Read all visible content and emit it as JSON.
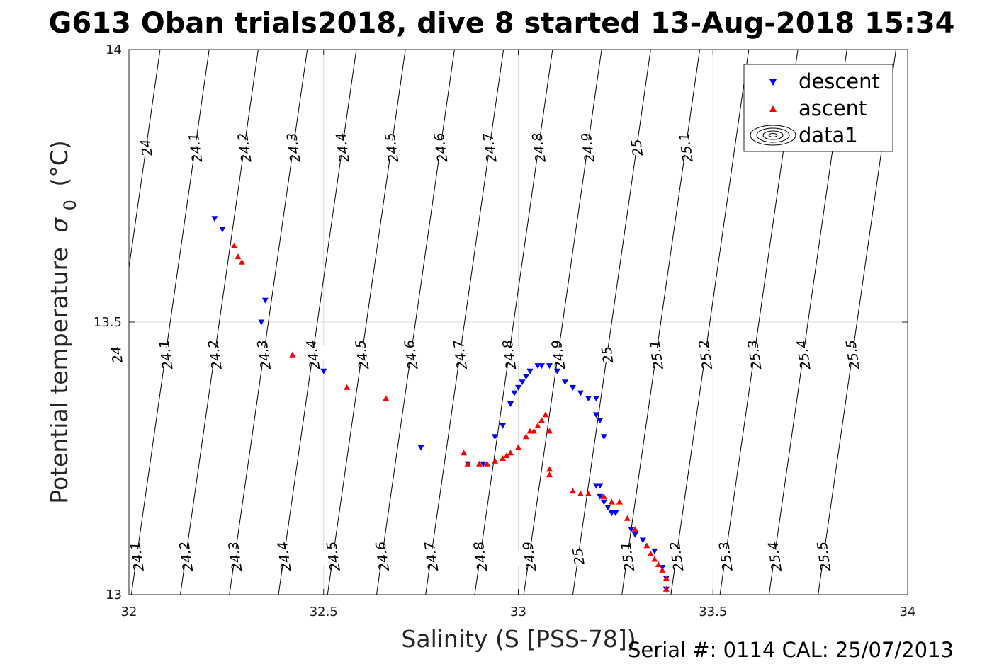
{
  "chart_data": {
    "type": "scatter",
    "title": "G613 Oban trials2018, dive 8 started 13-Aug-2018 15:34",
    "xlabel": "Salinity (S [PSS-78])",
    "ylabel": "Potential temperature",
    "ylabel_symbol": "σ",
    "ylabel_subscript": "0",
    "ylabel_unit": "(°C)",
    "xlim": [
      32,
      34
    ],
    "ylim": [
      13,
      14
    ],
    "xticks": [
      "32",
      "32.5",
      "33",
      "33.5",
      "34"
    ],
    "yticks": [
      "13",
      "13.5",
      "14"
    ],
    "grid": true,
    "legend_position": "top-right",
    "contour_levels": [
      24.0,
      24.1,
      24.2,
      24.3,
      24.4,
      24.5,
      24.6,
      24.7,
      24.8,
      24.9,
      25.0,
      25.1,
      25.2,
      25.3,
      25.4,
      25.5
    ],
    "contour_labels": {
      "top": [
        "24",
        "24.1",
        "24.2",
        "24.3",
        "24.4",
        "24.5",
        "24.6",
        "24.7",
        "24.8",
        "24.9",
        "25",
        "25.1"
      ],
      "middle": [
        "24",
        "24.1",
        "24.2",
        "24.3",
        "24.4",
        "24.5",
        "24.6",
        "24.7",
        "24.8",
        "24.9",
        "25",
        "25.1",
        "25.2",
        "25.3",
        "25.4",
        "25.5"
      ],
      "bottom": [
        "24.1",
        "24.2",
        "24.3",
        "24.4",
        "24.5",
        "24.6",
        "24.7",
        "24.8",
        "24.9",
        "25",
        "25.1",
        "25.2",
        "25.3",
        "25.4",
        "25.5"
      ]
    },
    "series": [
      {
        "name": "descent",
        "marker": "triangle-down",
        "color": "#0000ff",
        "points": [
          [
            32.22,
            13.69
          ],
          [
            32.24,
            13.67
          ],
          [
            32.35,
            13.54
          ],
          [
            32.34,
            13.5
          ],
          [
            32.5,
            13.41
          ],
          [
            32.75,
            13.27
          ],
          [
            32.87,
            13.24
          ],
          [
            32.91,
            13.24
          ],
          [
            32.94,
            13.29
          ],
          [
            32.96,
            13.31
          ],
          [
            32.98,
            13.35
          ],
          [
            32.99,
            13.37
          ],
          [
            33.0,
            13.38
          ],
          [
            33.01,
            13.39
          ],
          [
            33.02,
            13.4
          ],
          [
            33.03,
            13.41
          ],
          [
            33.05,
            13.42
          ],
          [
            33.06,
            13.42
          ],
          [
            33.08,
            13.42
          ],
          [
            33.1,
            13.41
          ],
          [
            33.12,
            13.39
          ],
          [
            33.14,
            13.38
          ],
          [
            33.16,
            13.37
          ],
          [
            33.18,
            13.36
          ],
          [
            33.2,
            13.36
          ],
          [
            33.2,
            13.33
          ],
          [
            33.21,
            13.32
          ],
          [
            33.22,
            13.29
          ],
          [
            33.2,
            13.2
          ],
          [
            33.21,
            13.2
          ],
          [
            33.21,
            13.18
          ],
          [
            33.22,
            13.17
          ],
          [
            33.23,
            13.16
          ],
          [
            33.24,
            13.15
          ],
          [
            33.25,
            13.15
          ],
          [
            33.29,
            13.12
          ],
          [
            33.3,
            13.11
          ],
          [
            33.32,
            13.1
          ],
          [
            33.35,
            13.08
          ],
          [
            33.37,
            13.05
          ],
          [
            33.38,
            13.03
          ],
          [
            33.38,
            13.01
          ]
        ]
      },
      {
        "name": "ascent",
        "marker": "triangle-up",
        "color": "#ff0000",
        "points": [
          [
            32.27,
            13.64
          ],
          [
            32.28,
            13.62
          ],
          [
            32.29,
            13.61
          ],
          [
            32.42,
            13.44
          ],
          [
            32.56,
            13.38
          ],
          [
            32.66,
            13.36
          ],
          [
            32.86,
            13.26
          ],
          [
            32.87,
            13.24
          ],
          [
            32.9,
            13.24
          ],
          [
            32.92,
            13.24
          ],
          [
            32.94,
            13.245
          ],
          [
            32.96,
            13.25
          ],
          [
            32.97,
            13.255
          ],
          [
            32.98,
            13.26
          ],
          [
            33.0,
            13.27
          ],
          [
            33.02,
            13.29
          ],
          [
            33.03,
            13.3
          ],
          [
            33.04,
            13.3
          ],
          [
            33.05,
            13.31
          ],
          [
            33.06,
            13.32
          ],
          [
            33.07,
            13.33
          ],
          [
            33.08,
            13.3
          ],
          [
            33.08,
            13.23
          ],
          [
            33.08,
            13.22
          ],
          [
            33.14,
            13.19
          ],
          [
            33.16,
            13.185
          ],
          [
            33.18,
            13.185
          ],
          [
            33.22,
            13.18
          ],
          [
            33.24,
            13.17
          ],
          [
            33.26,
            13.17
          ],
          [
            33.28,
            13.14
          ],
          [
            33.3,
            13.12
          ],
          [
            33.33,
            13.09
          ],
          [
            33.34,
            13.075
          ],
          [
            33.35,
            13.065
          ],
          [
            33.36,
            13.055
          ],
          [
            33.37,
            13.045
          ],
          [
            33.38,
            13.03
          ],
          [
            33.38,
            13.01
          ]
        ]
      }
    ],
    "legend": {
      "items": [
        {
          "label": "descent",
          "icon": "blue-triangle-down"
        },
        {
          "label": "ascent",
          "icon": "red-triangle-up"
        },
        {
          "label": "data1",
          "icon": "contour-rings"
        }
      ]
    }
  },
  "footer": {
    "serial": "Serial #: 0114  CAL: 25/07/2013"
  }
}
